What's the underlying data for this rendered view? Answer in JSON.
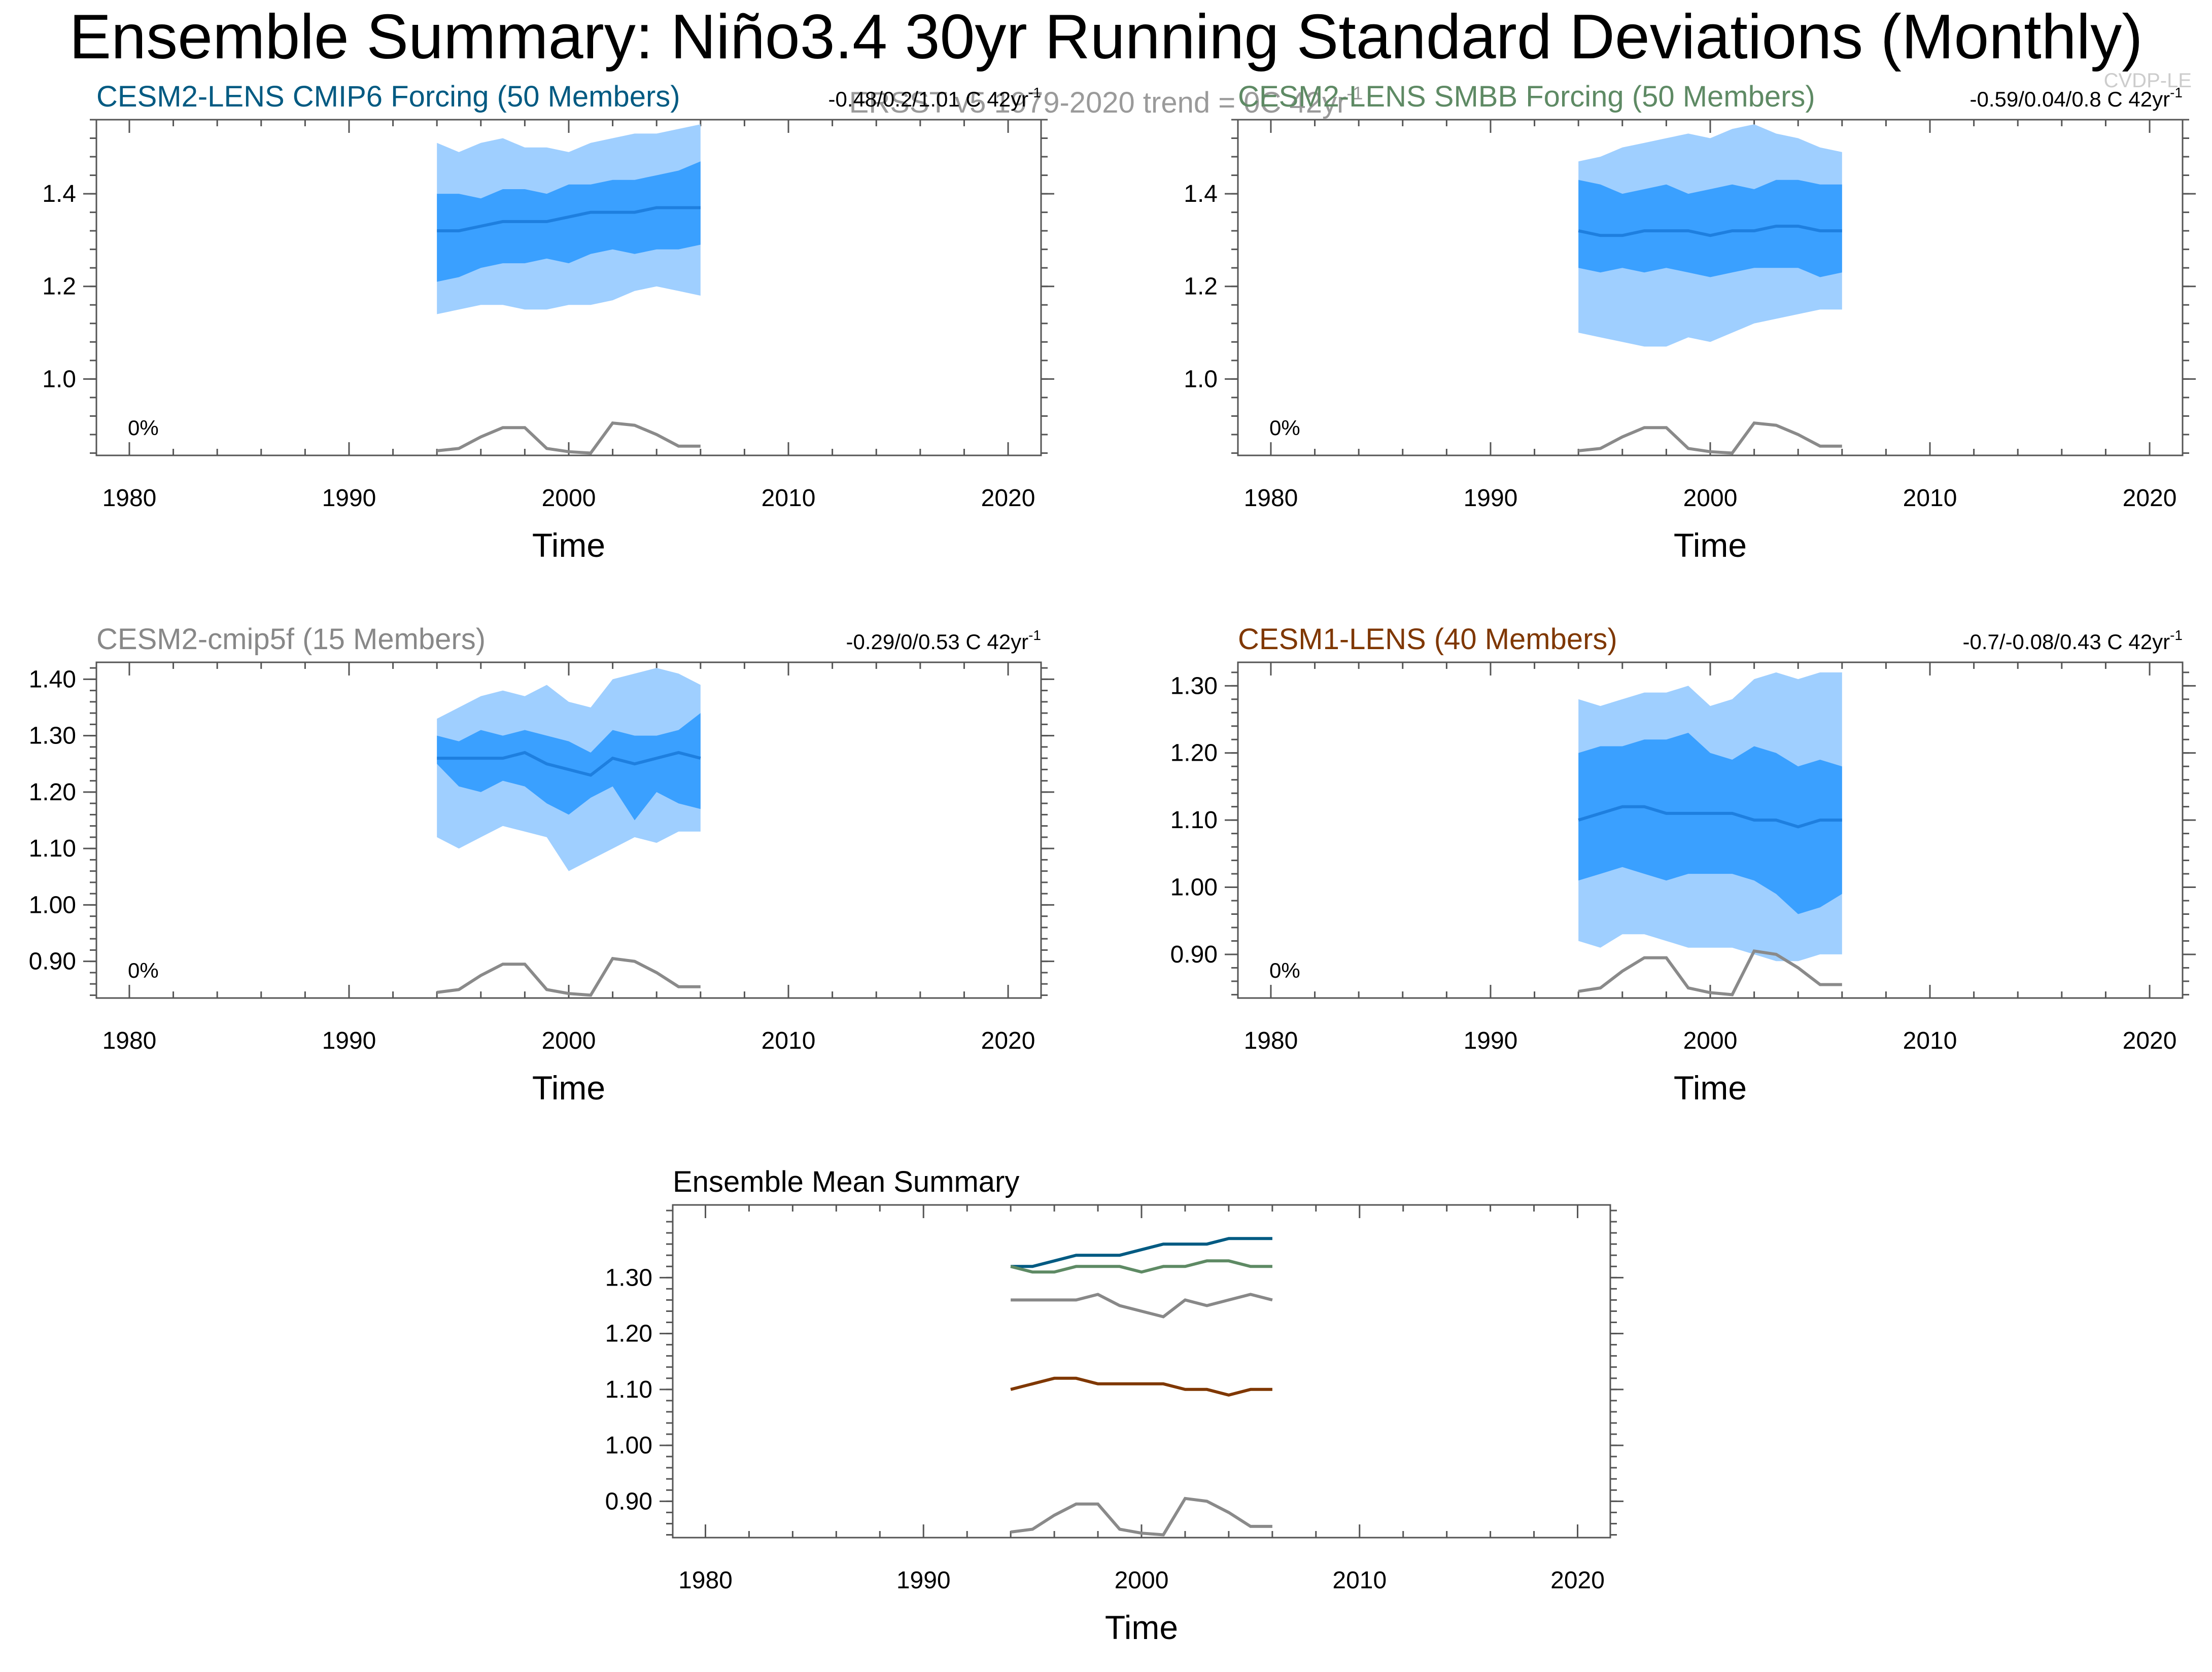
{
  "title": "Ensemble Summary: Niño3.4 30yr Running Standard Deviations (Monthly)",
  "subtitle": "ERSST v5 1979-2020 trend = 0C 42yr",
  "subtitle_sup": "-1",
  "corner_mark": "CVDP-LE",
  "colors": {
    "band_outer": "#9FCFFF",
    "band_inner": "#3AA0FF",
    "mean_line": "#1E7FDF",
    "obs_line": "#8A8A8A",
    "cesm2_cmip6": "#005A82",
    "cesm2_smbb": "#5E8A64",
    "cesm2_cmip5f": "#888888",
    "cesm1_lens": "#7F3700"
  },
  "chart_data": [
    {
      "type": "area",
      "title": "CESM2-LENS CMIP6 Forcing (50 Members)",
      "title_color": "#005A82",
      "trend": "-0.48/0.2/1.01 C 42yr",
      "trend_sup": "-1",
      "percent": "0%",
      "xlabel": "Time",
      "xlim": [
        1978.5,
        2021.5
      ],
      "ylim": [
        0.835,
        1.56
      ],
      "xticks": [
        "1980",
        "1990",
        "2000",
        "2010",
        "2020"
      ],
      "yticks": [
        "1.0",
        "1.2",
        "1.4"
      ],
      "x": [
        1994,
        1995,
        1996,
        1997,
        1998,
        1999,
        2000,
        2001,
        2002,
        2003,
        2004,
        2005,
        2006
      ],
      "outer_hi": [
        1.51,
        1.49,
        1.51,
        1.52,
        1.5,
        1.5,
        1.49,
        1.51,
        1.52,
        1.53,
        1.53,
        1.54,
        1.55
      ],
      "inner_hi": [
        1.4,
        1.4,
        1.39,
        1.41,
        1.41,
        1.4,
        1.42,
        1.42,
        1.43,
        1.43,
        1.44,
        1.45,
        1.47
      ],
      "mean": [
        1.32,
        1.32,
        1.33,
        1.34,
        1.34,
        1.34,
        1.35,
        1.36,
        1.36,
        1.36,
        1.37,
        1.37,
        1.37
      ],
      "inner_lo": [
        1.21,
        1.22,
        1.24,
        1.25,
        1.25,
        1.26,
        1.25,
        1.27,
        1.28,
        1.27,
        1.28,
        1.28,
        1.29
      ],
      "outer_lo": [
        1.14,
        1.15,
        1.16,
        1.16,
        1.15,
        1.15,
        1.16,
        1.16,
        1.17,
        1.19,
        1.2,
        1.19,
        1.18
      ],
      "obs": [
        0.845,
        0.85,
        0.875,
        0.895,
        0.895,
        0.85,
        0.843,
        0.84,
        0.905,
        0.9,
        0.88,
        0.855,
        0.855
      ]
    },
    {
      "type": "area",
      "title": "CESM2-LENS SMBB Forcing (50 Members)",
      "title_color": "#5E8A64",
      "trend": "-0.59/0.04/0.8 C 42yr",
      "trend_sup": "-1",
      "percent": "0%",
      "xlabel": "Time",
      "xlim": [
        1978.5,
        2021.5
      ],
      "ylim": [
        0.835,
        1.56
      ],
      "xticks": [
        "1980",
        "1990",
        "2000",
        "2010",
        "2020"
      ],
      "yticks": [
        "1.0",
        "1.2",
        "1.4"
      ],
      "x": [
        1994,
        1995,
        1996,
        1997,
        1998,
        1999,
        2000,
        2001,
        2002,
        2003,
        2004,
        2005,
        2006
      ],
      "outer_hi": [
        1.47,
        1.48,
        1.5,
        1.51,
        1.52,
        1.53,
        1.52,
        1.54,
        1.55,
        1.53,
        1.52,
        1.5,
        1.49
      ],
      "inner_hi": [
        1.43,
        1.42,
        1.4,
        1.41,
        1.42,
        1.4,
        1.41,
        1.42,
        1.41,
        1.43,
        1.43,
        1.42,
        1.42
      ],
      "mean": [
        1.32,
        1.31,
        1.31,
        1.32,
        1.32,
        1.32,
        1.31,
        1.32,
        1.32,
        1.33,
        1.33,
        1.32,
        1.32
      ],
      "inner_lo": [
        1.24,
        1.23,
        1.24,
        1.23,
        1.24,
        1.23,
        1.22,
        1.23,
        1.24,
        1.24,
        1.24,
        1.22,
        1.23
      ],
      "outer_lo": [
        1.1,
        1.09,
        1.08,
        1.07,
        1.07,
        1.09,
        1.08,
        1.1,
        1.12,
        1.13,
        1.14,
        1.15,
        1.15
      ],
      "obs": [
        0.845,
        0.85,
        0.875,
        0.895,
        0.895,
        0.85,
        0.843,
        0.84,
        0.905,
        0.9,
        0.88,
        0.855,
        0.855
      ]
    },
    {
      "type": "area",
      "title": "CESM2-cmip5f (15 Members)",
      "title_color": "#888888",
      "trend": "-0.29/0/0.53 C 42yr",
      "trend_sup": "-1",
      "percent": "0%",
      "xlabel": "Time",
      "xlim": [
        1978.5,
        2021.5
      ],
      "ylim": [
        0.835,
        1.43
      ],
      "xticks": [
        "1980",
        "1990",
        "2000",
        "2010",
        "2020"
      ],
      "yticks": [
        "0.90",
        "1.00",
        "1.10",
        "1.20",
        "1.30",
        "1.40"
      ],
      "x": [
        1994,
        1995,
        1996,
        1997,
        1998,
        1999,
        2000,
        2001,
        2002,
        2003,
        2004,
        2005,
        2006
      ],
      "outer_hi": [
        1.33,
        1.35,
        1.37,
        1.38,
        1.37,
        1.39,
        1.36,
        1.35,
        1.4,
        1.41,
        1.42,
        1.41,
        1.39
      ],
      "inner_hi": [
        1.3,
        1.29,
        1.31,
        1.3,
        1.31,
        1.3,
        1.29,
        1.27,
        1.31,
        1.3,
        1.3,
        1.31,
        1.34
      ],
      "mean": [
        1.26,
        1.26,
        1.26,
        1.26,
        1.27,
        1.25,
        1.24,
        1.23,
        1.26,
        1.25,
        1.26,
        1.27,
        1.26
      ],
      "inner_lo": [
        1.25,
        1.21,
        1.2,
        1.22,
        1.21,
        1.18,
        1.16,
        1.19,
        1.21,
        1.15,
        1.2,
        1.18,
        1.17
      ],
      "outer_lo": [
        1.12,
        1.1,
        1.12,
        1.14,
        1.13,
        1.12,
        1.06,
        1.08,
        1.1,
        1.12,
        1.11,
        1.13,
        1.13
      ],
      "obs": [
        0.845,
        0.85,
        0.875,
        0.895,
        0.895,
        0.85,
        0.843,
        0.84,
        0.905,
        0.9,
        0.88,
        0.855,
        0.855
      ]
    },
    {
      "type": "area",
      "title": "CESM1-LENS (40 Members)",
      "title_color": "#7F3700",
      "trend": "-0.7/-0.08/0.43 C 42yr",
      "trend_sup": "-1",
      "percent": "0%",
      "xlabel": "Time",
      "xlim": [
        1978.5,
        2021.5
      ],
      "ylim": [
        0.835,
        1.335
      ],
      "xticks": [
        "1980",
        "1990",
        "2000",
        "2010",
        "2020"
      ],
      "yticks": [
        "0.90",
        "1.00",
        "1.10",
        "1.20",
        "1.30"
      ],
      "x": [
        1994,
        1995,
        1996,
        1997,
        1998,
        1999,
        2000,
        2001,
        2002,
        2003,
        2004,
        2005,
        2006
      ],
      "outer_hi": [
        1.28,
        1.27,
        1.28,
        1.29,
        1.29,
        1.3,
        1.27,
        1.28,
        1.31,
        1.32,
        1.31,
        1.32,
        1.32
      ],
      "inner_hi": [
        1.2,
        1.21,
        1.21,
        1.22,
        1.22,
        1.23,
        1.2,
        1.19,
        1.21,
        1.2,
        1.18,
        1.19,
        1.18
      ],
      "mean": [
        1.1,
        1.11,
        1.12,
        1.12,
        1.11,
        1.11,
        1.11,
        1.11,
        1.1,
        1.1,
        1.09,
        1.1,
        1.1
      ],
      "inner_lo": [
        1.01,
        1.02,
        1.03,
        1.02,
        1.01,
        1.02,
        1.02,
        1.02,
        1.01,
        0.99,
        0.96,
        0.97,
        0.99
      ],
      "outer_lo": [
        0.92,
        0.91,
        0.93,
        0.93,
        0.92,
        0.91,
        0.91,
        0.91,
        0.9,
        0.89,
        0.89,
        0.9,
        0.9
      ],
      "obs": [
        0.845,
        0.85,
        0.875,
        0.895,
        0.895,
        0.85,
        0.843,
        0.84,
        0.905,
        0.9,
        0.88,
        0.855,
        0.855
      ]
    },
    {
      "type": "line",
      "title": "Ensemble Mean Summary",
      "xlabel": "Time",
      "xlim": [
        1978.5,
        2021.5
      ],
      "ylim": [
        0.835,
        1.43
      ],
      "xticks": [
        "1980",
        "1990",
        "2000",
        "2010",
        "2020"
      ],
      "yticks": [
        "0.90",
        "1.00",
        "1.10",
        "1.20",
        "1.30"
      ],
      "x": [
        1994,
        1995,
        1996,
        1997,
        1998,
        1999,
        2000,
        2001,
        2002,
        2003,
        2004,
        2005,
        2006
      ],
      "series": [
        {
          "name": "CESM2-LENS CMIP6 Forcing",
          "color": "#005A82",
          "values": [
            1.32,
            1.32,
            1.33,
            1.34,
            1.34,
            1.34,
            1.35,
            1.36,
            1.36,
            1.36,
            1.37,
            1.37,
            1.37
          ]
        },
        {
          "name": "CESM2-LENS SMBB Forcing",
          "color": "#5E8A64",
          "values": [
            1.32,
            1.31,
            1.31,
            1.32,
            1.32,
            1.32,
            1.31,
            1.32,
            1.32,
            1.33,
            1.33,
            1.32,
            1.32
          ]
        },
        {
          "name": "CESM2-cmip5f",
          "color": "#888888",
          "values": [
            1.26,
            1.26,
            1.26,
            1.26,
            1.27,
            1.25,
            1.24,
            1.23,
            1.26,
            1.25,
            1.26,
            1.27,
            1.26
          ]
        },
        {
          "name": "CESM1-LENS",
          "color": "#7F3700",
          "values": [
            1.1,
            1.11,
            1.12,
            1.12,
            1.11,
            1.11,
            1.11,
            1.11,
            1.1,
            1.1,
            1.09,
            1.1,
            1.1
          ]
        },
        {
          "name": "ERSST v5",
          "color": "#8A8A8A",
          "values": [
            0.845,
            0.85,
            0.875,
            0.895,
            0.895,
            0.85,
            0.843,
            0.84,
            0.905,
            0.9,
            0.88,
            0.855,
            0.855
          ]
        }
      ]
    }
  ]
}
